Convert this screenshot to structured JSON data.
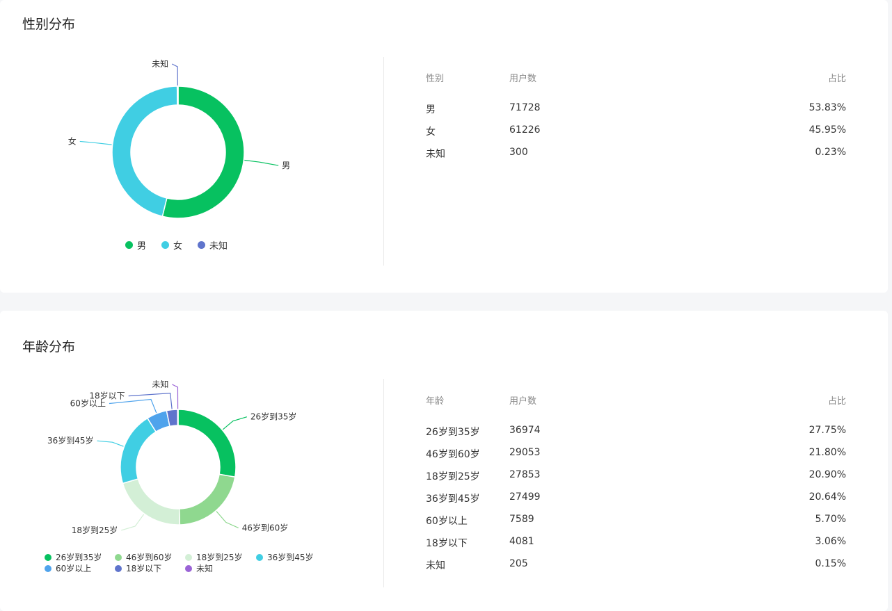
{
  "gender_section": {
    "title": "性别分布",
    "table_headers": {
      "category": "性别",
      "users": "用户数",
      "share": "占比"
    },
    "rows": [
      {
        "category": "男",
        "users": "71728",
        "share": "53.83%"
      },
      {
        "category": "女",
        "users": "61226",
        "share": "45.95%"
      },
      {
        "category": "未知",
        "users": "300",
        "share": "0.23%"
      }
    ]
  },
  "age_section": {
    "title": "年龄分布",
    "table_headers": {
      "category": "年龄",
      "users": "用户数",
      "share": "占比"
    },
    "rows": [
      {
        "category": "26岁到35岁",
        "users": "36974",
        "share": "27.75%"
      },
      {
        "category": "46岁到60岁",
        "users": "29053",
        "share": "21.80%"
      },
      {
        "category": "18岁到25岁",
        "users": "27853",
        "share": "20.90%"
      },
      {
        "category": "36岁到45岁",
        "users": "27499",
        "share": "20.64%"
      },
      {
        "category": "60岁以上",
        "users": "7589",
        "share": "5.70%"
      },
      {
        "category": "18岁以下",
        "users": "4081",
        "share": "3.06%"
      },
      {
        "category": "未知",
        "users": "205",
        "share": "0.15%"
      }
    ]
  },
  "chart_data": [
    {
      "type": "pie",
      "variant": "donut",
      "title": "性别分布",
      "categories": [
        "男",
        "女",
        "未知"
      ],
      "values": [
        71728,
        61226,
        300
      ],
      "colors": [
        "#07c160",
        "#40cee3",
        "#5f74cc"
      ],
      "legend": [
        "男",
        "女",
        "未知"
      ],
      "legend_position": "bottom-center"
    },
    {
      "type": "pie",
      "variant": "donut",
      "title": "年龄分布",
      "categories": [
        "26岁到35岁",
        "46岁到60岁",
        "18岁到25岁",
        "36岁到45岁",
        "60岁以上",
        "18岁以下",
        "未知"
      ],
      "values": [
        36974,
        29053,
        27853,
        27499,
        7589,
        4081,
        205
      ],
      "colors": [
        "#07c160",
        "#8fd88f",
        "#d3efd6",
        "#40cee3",
        "#4fa3ec",
        "#5f74cc",
        "#9a63d6"
      ],
      "legend": [
        "26岁到35岁",
        "46岁到60岁",
        "18岁到25岁",
        "36岁到45岁",
        "60岁以上",
        "18岁以下",
        "未知"
      ],
      "legend_position": "bottom-left"
    }
  ]
}
